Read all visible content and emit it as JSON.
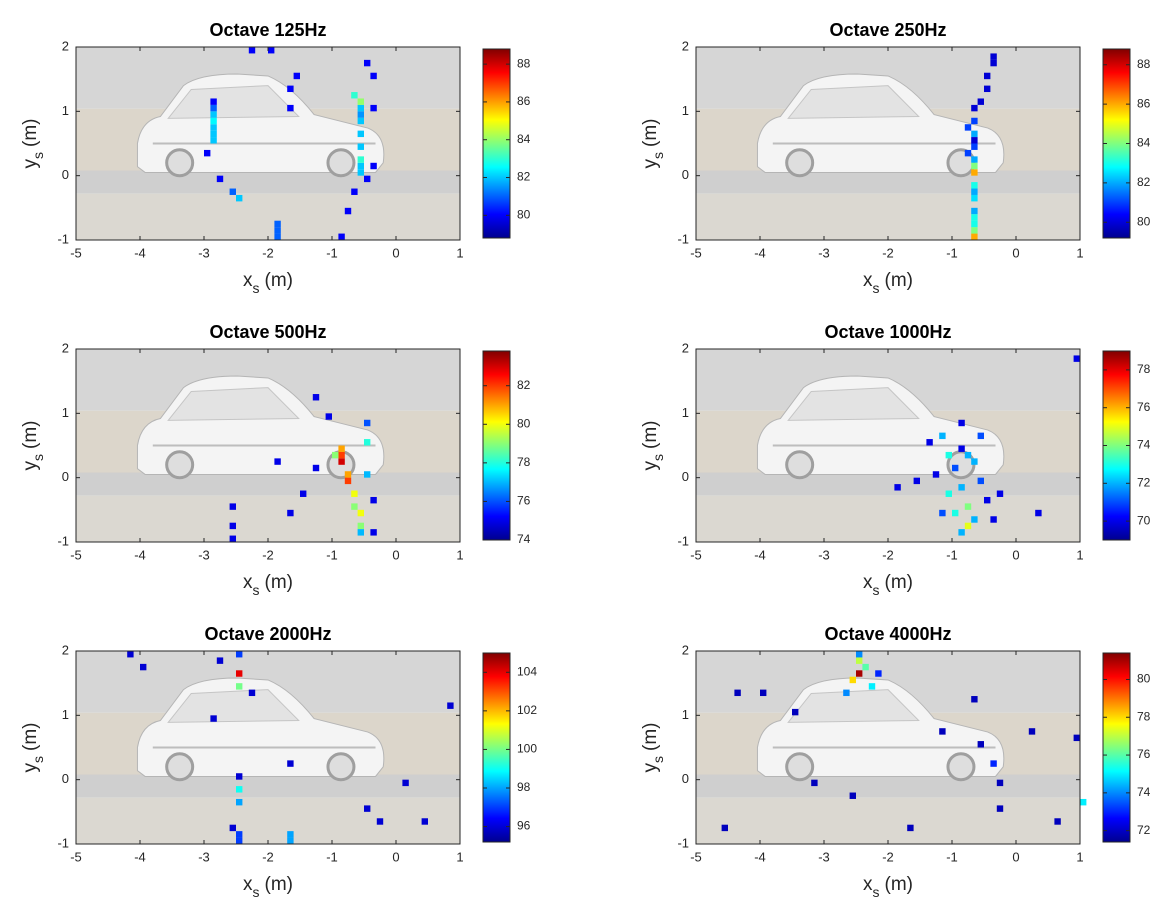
{
  "chart_data": [
    {
      "type": "heatmap",
      "title": "Octave 125Hz",
      "xlabel": "x",
      "xlabel_sub": "s",
      "xlabel_unit": "(m)",
      "ylabel": "y",
      "ylabel_sub": "s",
      "ylabel_unit": "(m)",
      "xlim": [
        -5,
        1
      ],
      "xticks": [
        -5,
        -4,
        -3,
        -2,
        -1,
        0,
        1
      ],
      "ylim": [
        -1,
        2
      ],
      "yticks": [
        -1,
        0,
        1,
        2
      ],
      "colormap": "jet",
      "clim": [
        78.8,
        88.8
      ],
      "cticks": [
        80,
        82,
        84,
        86,
        88
      ],
      "cells": {
        "x": [
          -2.9,
          -2.9,
          -2.9,
          -2.9,
          -2.9,
          -2.9,
          -2.9,
          -3.0,
          -2.8,
          -2.6,
          -2.5,
          -2.3,
          -2.0,
          -1.9,
          -1.9,
          -1.9,
          -1.7,
          -1.7,
          -1.6,
          -0.6,
          -0.6,
          -0.6,
          -0.6,
          -0.6,
          -0.6,
          -0.6,
          -0.6,
          -0.6,
          -0.7,
          -0.7,
          -0.8,
          -0.9,
          -0.5,
          -0.4,
          -0.4,
          -0.4,
          -0.5
        ],
        "y": [
          0.5,
          0.6,
          0.7,
          0.8,
          0.9,
          1.0,
          1.1,
          0.3,
          -0.1,
          -0.3,
          -0.4,
          1.9,
          1.9,
          -0.8,
          -0.9,
          -1.0,
          1.3,
          1.0,
          1.5,
          0.0,
          0.1,
          0.2,
          0.4,
          0.6,
          0.8,
          0.9,
          1.0,
          1.1,
          1.2,
          -0.3,
          -0.6,
          -1.0,
          -0.1,
          0.1,
          1.0,
          1.5,
          1.7
        ],
        "values": [
          82,
          82,
          82,
          82.5,
          82,
          81,
          80,
          80,
          80,
          81,
          82,
          80,
          80,
          81,
          81,
          81,
          80,
          80,
          80,
          82,
          82,
          83,
          82,
          82,
          82,
          81.5,
          82,
          84,
          83,
          80,
          80,
          80,
          80,
          80,
          80,
          80,
          80
        ]
      }
    },
    {
      "type": "heatmap",
      "title": "Octave 250Hz",
      "xlabel": "x",
      "xlabel_sub": "s",
      "xlabel_unit": "(m)",
      "ylabel": "y",
      "ylabel_sub": "s",
      "ylabel_unit": "(m)",
      "xlim": [
        -5,
        1
      ],
      "xticks": [
        -5,
        -4,
        -3,
        -2,
        -1,
        0,
        1
      ],
      "ylim": [
        -1,
        2
      ],
      "yticks": [
        -1,
        0,
        1,
        2
      ],
      "colormap": "jet",
      "clim": [
        79.2,
        88.8
      ],
      "cticks": [
        80,
        82,
        84,
        86,
        88
      ],
      "cells": {
        "x": [
          -0.7,
          -0.7,
          -0.7,
          -0.7,
          -0.7,
          -0.7,
          -0.7,
          -0.7,
          -0.7,
          -0.7,
          -0.7,
          -0.7,
          -0.7,
          -0.7,
          -0.7,
          -0.7,
          -0.8,
          -0.8,
          -0.6,
          -0.5,
          -0.5,
          -0.4,
          -0.4
        ],
        "y": [
          -1.0,
          -0.9,
          -0.8,
          -0.6,
          -0.4,
          -0.2,
          0.0,
          0.2,
          0.4,
          0.6,
          0.8,
          1.0,
          -0.7,
          -0.3,
          0.1,
          0.5,
          0.3,
          0.7,
          1.1,
          1.3,
          1.5,
          1.7,
          1.8
        ],
        "values": [
          86,
          84,
          83,
          82,
          82.5,
          83,
          86,
          82,
          81,
          82,
          81,
          80,
          83,
          82,
          84,
          80,
          81,
          81,
          80,
          80,
          80,
          80,
          80
        ]
      }
    },
    {
      "type": "heatmap",
      "title": "Octave 500Hz",
      "xlabel": "x",
      "xlabel_sub": "s",
      "xlabel_unit": "(m)",
      "ylabel": "y",
      "ylabel_sub": "s",
      "ylabel_unit": "(m)",
      "xlim": [
        -5,
        1
      ],
      "xticks": [
        -5,
        -4,
        -3,
        -2,
        -1,
        0,
        1
      ],
      "ylim": [
        -1,
        2
      ],
      "yticks": [
        -1,
        0,
        1,
        2
      ],
      "colormap": "jet",
      "clim": [
        74,
        83.8
      ],
      "cticks": [
        74,
        76,
        78,
        80,
        82
      ],
      "cells": {
        "x": [
          -0.9,
          -0.9,
          -0.9,
          -1.0,
          -0.8,
          -0.8,
          -0.7,
          -0.7,
          -0.6,
          -0.6,
          -0.6,
          -0.5,
          -0.5,
          -1.1,
          -1.3,
          -1.5,
          -1.7,
          -1.9,
          -2.6,
          -2.6,
          -2.6,
          -0.4,
          -0.4,
          -1.3,
          -0.5
        ],
        "y": [
          0.2,
          0.3,
          0.4,
          0.3,
          0.0,
          -0.1,
          -0.3,
          -0.5,
          -0.6,
          -0.8,
          -0.9,
          0.5,
          0.8,
          0.9,
          0.1,
          -0.3,
          -0.6,
          0.2,
          -0.5,
          -0.8,
          -1.0,
          -0.4,
          -0.9,
          1.2,
          0.0
        ],
        "values": [
          83,
          82,
          81,
          79,
          81,
          82,
          80,
          79,
          80,
          79,
          77,
          78,
          76,
          75,
          75,
          75,
          75,
          75,
          75,
          75,
          75,
          75,
          75,
          75,
          77
        ]
      }
    },
    {
      "type": "heatmap",
      "title": "Octave 1000Hz",
      "xlabel": "x",
      "xlabel_sub": "s",
      "xlabel_unit": "(m)",
      "ylabel": "y",
      "ylabel_sub": "s",
      "ylabel_unit": "(m)",
      "xlim": [
        -5,
        1
      ],
      "xticks": [
        -5,
        -4,
        -3,
        -2,
        -1,
        0,
        1
      ],
      "ylim": [
        -1,
        2
      ],
      "yticks": [
        -1,
        0,
        1,
        2
      ],
      "colormap": "jet",
      "clim": [
        69,
        79
      ],
      "cticks": [
        70,
        72,
        74,
        76,
        78
      ],
      "cells": {
        "x": [
          -1.2,
          -1.1,
          -1.0,
          -0.9,
          -0.8,
          -0.7,
          -1.3,
          -1.1,
          -0.9,
          -0.7,
          -0.5,
          -1.0,
          -0.8,
          -0.6,
          -1.4,
          -1.2,
          -0.9,
          -0.8,
          -0.6,
          -0.4,
          -1.6,
          -0.3,
          0.3,
          -1.9,
          -0.9,
          0.9
        ],
        "y": [
          0.6,
          0.3,
          0.1,
          -0.2,
          -0.5,
          -0.7,
          0.0,
          -0.3,
          0.4,
          0.2,
          -0.4,
          -0.6,
          -0.8,
          -0.1,
          0.5,
          -0.6,
          0.8,
          0.3,
          0.6,
          -0.7,
          -0.1,
          -0.3,
          -0.6,
          -0.2,
          -0.9,
          1.8
        ],
        "values": [
          72,
          73,
          71,
          72,
          74,
          72,
          70,
          73,
          70,
          72,
          70,
          73,
          75,
          71,
          70,
          71,
          70,
          72,
          71,
          70,
          70,
          70,
          70,
          70,
          72,
          70
        ]
      }
    },
    {
      "type": "heatmap",
      "title": "Octave 2000Hz",
      "xlabel": "x",
      "xlabel_sub": "s",
      "xlabel_unit": "(m)",
      "ylabel": "y",
      "ylabel_sub": "s",
      "ylabel_unit": "(m)",
      "xlim": [
        -5,
        1
      ],
      "xticks": [
        -5,
        -4,
        -3,
        -2,
        -1,
        0,
        1
      ],
      "ylim": [
        -1,
        2
      ],
      "yticks": [
        -1,
        0,
        1,
        2
      ],
      "colormap": "jet",
      "clim": [
        95.2,
        105
      ],
      "cticks": [
        96,
        98,
        100,
        102,
        104
      ],
      "cells": {
        "x": [
          -2.5,
          -2.5,
          -2.5,
          -2.5,
          -2.5,
          -2.5,
          -2.5,
          -2.5,
          -4.2,
          -4.0,
          -2.8,
          -2.3,
          -1.7,
          -1.7,
          -1.7,
          -0.5,
          -0.3,
          0.1,
          0.4,
          0.8,
          -2.9,
          -2.6
        ],
        "y": [
          1.9,
          1.6,
          1.4,
          0.0,
          -0.2,
          -0.4,
          -0.9,
          -1.0,
          1.9,
          1.7,
          1.8,
          1.3,
          0.2,
          -0.9,
          -1.0,
          -0.5,
          -0.7,
          -0.1,
          -0.7,
          1.1,
          0.9,
          -0.8
        ],
        "values": [
          97,
          104,
          100,
          96,
          99,
          98,
          97,
          97,
          96,
          96,
          96,
          96,
          96,
          98,
          98,
          96,
          96,
          96,
          96,
          96,
          96,
          96
        ]
      }
    },
    {
      "type": "heatmap",
      "title": "Octave 4000Hz",
      "xlabel": "x",
      "xlabel_sub": "s",
      "xlabel_unit": "(m)",
      "ylabel": "y",
      "ylabel_sub": "s",
      "ylabel_unit": "(m)",
      "xlim": [
        -5,
        1
      ],
      "xticks": [
        -5,
        -4,
        -3,
        -2,
        -1,
        0,
        1
      ],
      "ylim": [
        -1,
        2
      ],
      "yticks": [
        -1,
        0,
        1,
        2
      ],
      "colormap": "jet",
      "clim": [
        71.4,
        81.4
      ],
      "cticks": [
        72,
        74,
        76,
        78,
        80
      ],
      "cells": {
        "x": [
          -2.5,
          -2.6,
          -2.4,
          -2.5,
          -2.3,
          -2.7,
          -2.2,
          -2.5,
          -4.4,
          -4.0,
          -3.5,
          -1.2,
          -0.7,
          -0.6,
          -0.4,
          -0.3,
          0.2,
          0.9,
          1.0,
          -4.6,
          -3.2,
          -2.6,
          -1.7,
          -0.3,
          0.6
        ],
        "y": [
          1.6,
          1.5,
          1.7,
          1.8,
          1.4,
          1.3,
          1.6,
          1.9,
          1.3,
          1.3,
          1.0,
          0.7,
          1.2,
          0.5,
          0.2,
          -0.1,
          0.7,
          0.6,
          -0.4,
          -0.8,
          -0.1,
          -0.3,
          -0.8,
          -0.5,
          -0.7
        ],
        "values": [
          81,
          78,
          76,
          77,
          75,
          74,
          73,
          74,
          72,
          72,
          72,
          72,
          72,
          72,
          73,
          72,
          72,
          72,
          75,
          72,
          72,
          72,
          72,
          72,
          72
        ]
      }
    }
  ]
}
